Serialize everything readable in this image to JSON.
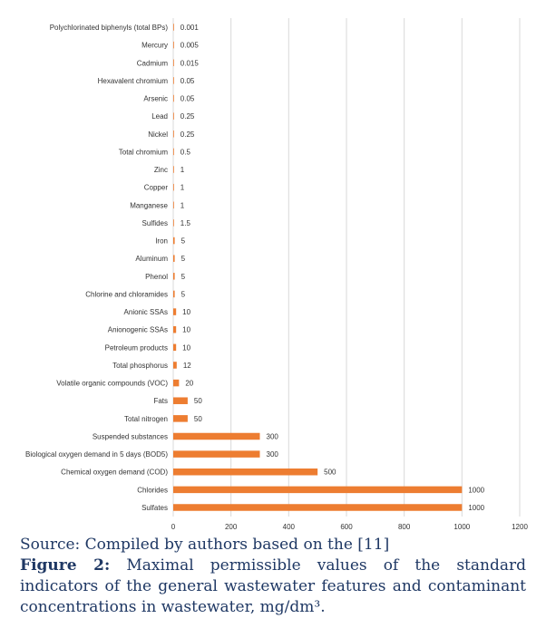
{
  "chart_data": {
    "type": "bar",
    "orientation": "horizontal",
    "categories": [
      "Polychlorinated biphenyls (total BPs)",
      "Mercury",
      "Cadmium",
      "Hexavalent chromium",
      "Arsenic",
      "Lead",
      "Nickel",
      "Total chromium",
      "Zinc",
      "Copper",
      "Manganese",
      "Sulfides",
      "Iron",
      "Aluminum",
      "Phenol",
      "Chlorine and chloramides",
      "Anionic SSAs",
      "Anionogenic SSAs",
      "Petroleum products",
      "Total phosphorus",
      "Volatile organic compounds (VOC)",
      "Fats",
      "Total nitrogen",
      "Suspended substances",
      "Biological oxygen demand in 5 days (BOD5)",
      "Chemical oxygen demand (COD)",
      "Chlorides",
      "Sulfates"
    ],
    "values": [
      0.001,
      0.005,
      0.015,
      0.05,
      0.05,
      0.25,
      0.25,
      0.5,
      1,
      1,
      1,
      1.5,
      5,
      5,
      5,
      5,
      10,
      10,
      10,
      12,
      20,
      50,
      50,
      300,
      300,
      500,
      1000,
      1000
    ],
    "value_labels": [
      "0.001",
      "0.005",
      "0.015",
      "0.05",
      "0.05",
      "0.25",
      "0.25",
      "0.5",
      "1",
      "1",
      "1",
      "1.5",
      "5",
      "5",
      "5",
      "5",
      "10",
      "10",
      "10",
      "12",
      "20",
      "50",
      "50",
      "300",
      "300",
      "500",
      "1000",
      "1000"
    ],
    "xticks": [
      "0",
      "200",
      "400",
      "600",
      "800",
      "1000",
      "1200"
    ],
    "xlim": [
      0,
      1200
    ],
    "bar_color": "#ed7d31",
    "grid": true
  },
  "caption": {
    "source": "Source: Compiled by authors based on the [11]",
    "figure_label": "Figure 2:",
    "figure_text": " Maximal permissible values of the standard indicators of the general wastewater features and contaminant concentrations in wastewater, mg/dm³.",
    "color": "#1f3864"
  }
}
